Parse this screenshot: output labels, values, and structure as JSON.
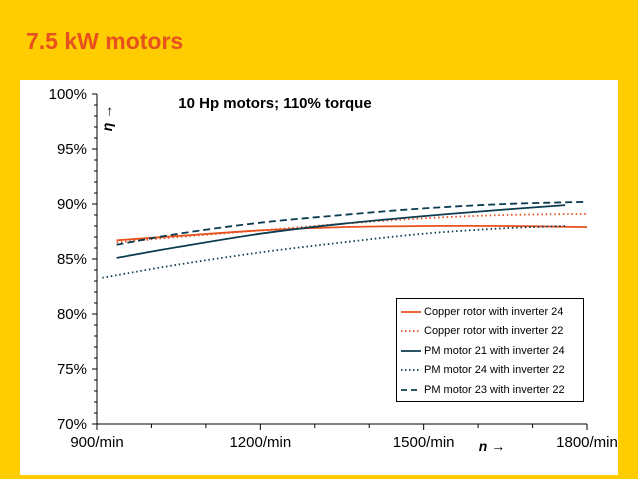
{
  "slide": {
    "title": "7.5 kW motors"
  },
  "chart_data": {
    "type": "line",
    "title": "10 Hp motors; 110% torque",
    "ylabel": "η →",
    "xlabel": "n →",
    "x_ticklabels": [
      "900/min",
      "1200/min",
      "1500/min",
      "1800/min"
    ],
    "x_ticks": [
      900,
      1200,
      1500,
      1800
    ],
    "y_ticklabels": [
      "70%",
      "75%",
      "80%",
      "85%",
      "90%",
      "95%",
      "100%"
    ],
    "y_ticks": [
      70,
      75,
      80,
      85,
      90,
      95,
      100
    ],
    "xlim": [
      900,
      1800
    ],
    "ylim": [
      70,
      100
    ],
    "grid": false,
    "legend_position": "bottom-right",
    "series": [
      {
        "name": "Copper rotor with inverter 24",
        "color": "#E8501E",
        "style": "solid",
        "x": [
          936,
          1050,
          1200,
          1350,
          1500,
          1650,
          1800
        ],
        "y": [
          86.7,
          87.1,
          87.6,
          87.9,
          88.0,
          88.0,
          87.9
        ]
      },
      {
        "name": "Copper rotor with inverter 22",
        "color": "#E8501E",
        "style": "dotted",
        "x": [
          936,
          1050,
          1200,
          1350,
          1500,
          1650,
          1800
        ],
        "y": [
          86.5,
          87.0,
          87.6,
          88.2,
          88.7,
          89.0,
          89.1
        ]
      },
      {
        "name": "PM motor 21 with inverter 24",
        "color": "#0B3C50",
        "style": "solid",
        "x": [
          936,
          1050,
          1200,
          1350,
          1500,
          1650,
          1760
        ],
        "y": [
          85.1,
          86.1,
          87.3,
          88.2,
          88.9,
          89.5,
          89.9
        ]
      },
      {
        "name": "PM motor 24 with inverter 22",
        "color": "#0B3C50",
        "style": "dotted",
        "x": [
          910,
          1050,
          1200,
          1350,
          1500,
          1650,
          1760
        ],
        "y": [
          83.3,
          84.5,
          85.6,
          86.5,
          87.3,
          87.8,
          88.0
        ]
      },
      {
        "name": "PM motor 23 with inverter 22",
        "color": "#0B3C50",
        "style": "dashed",
        "x": [
          936,
          1050,
          1200,
          1350,
          1500,
          1650,
          1800
        ],
        "y": [
          86.3,
          87.3,
          88.3,
          89.0,
          89.6,
          90.0,
          90.2
        ]
      }
    ]
  }
}
